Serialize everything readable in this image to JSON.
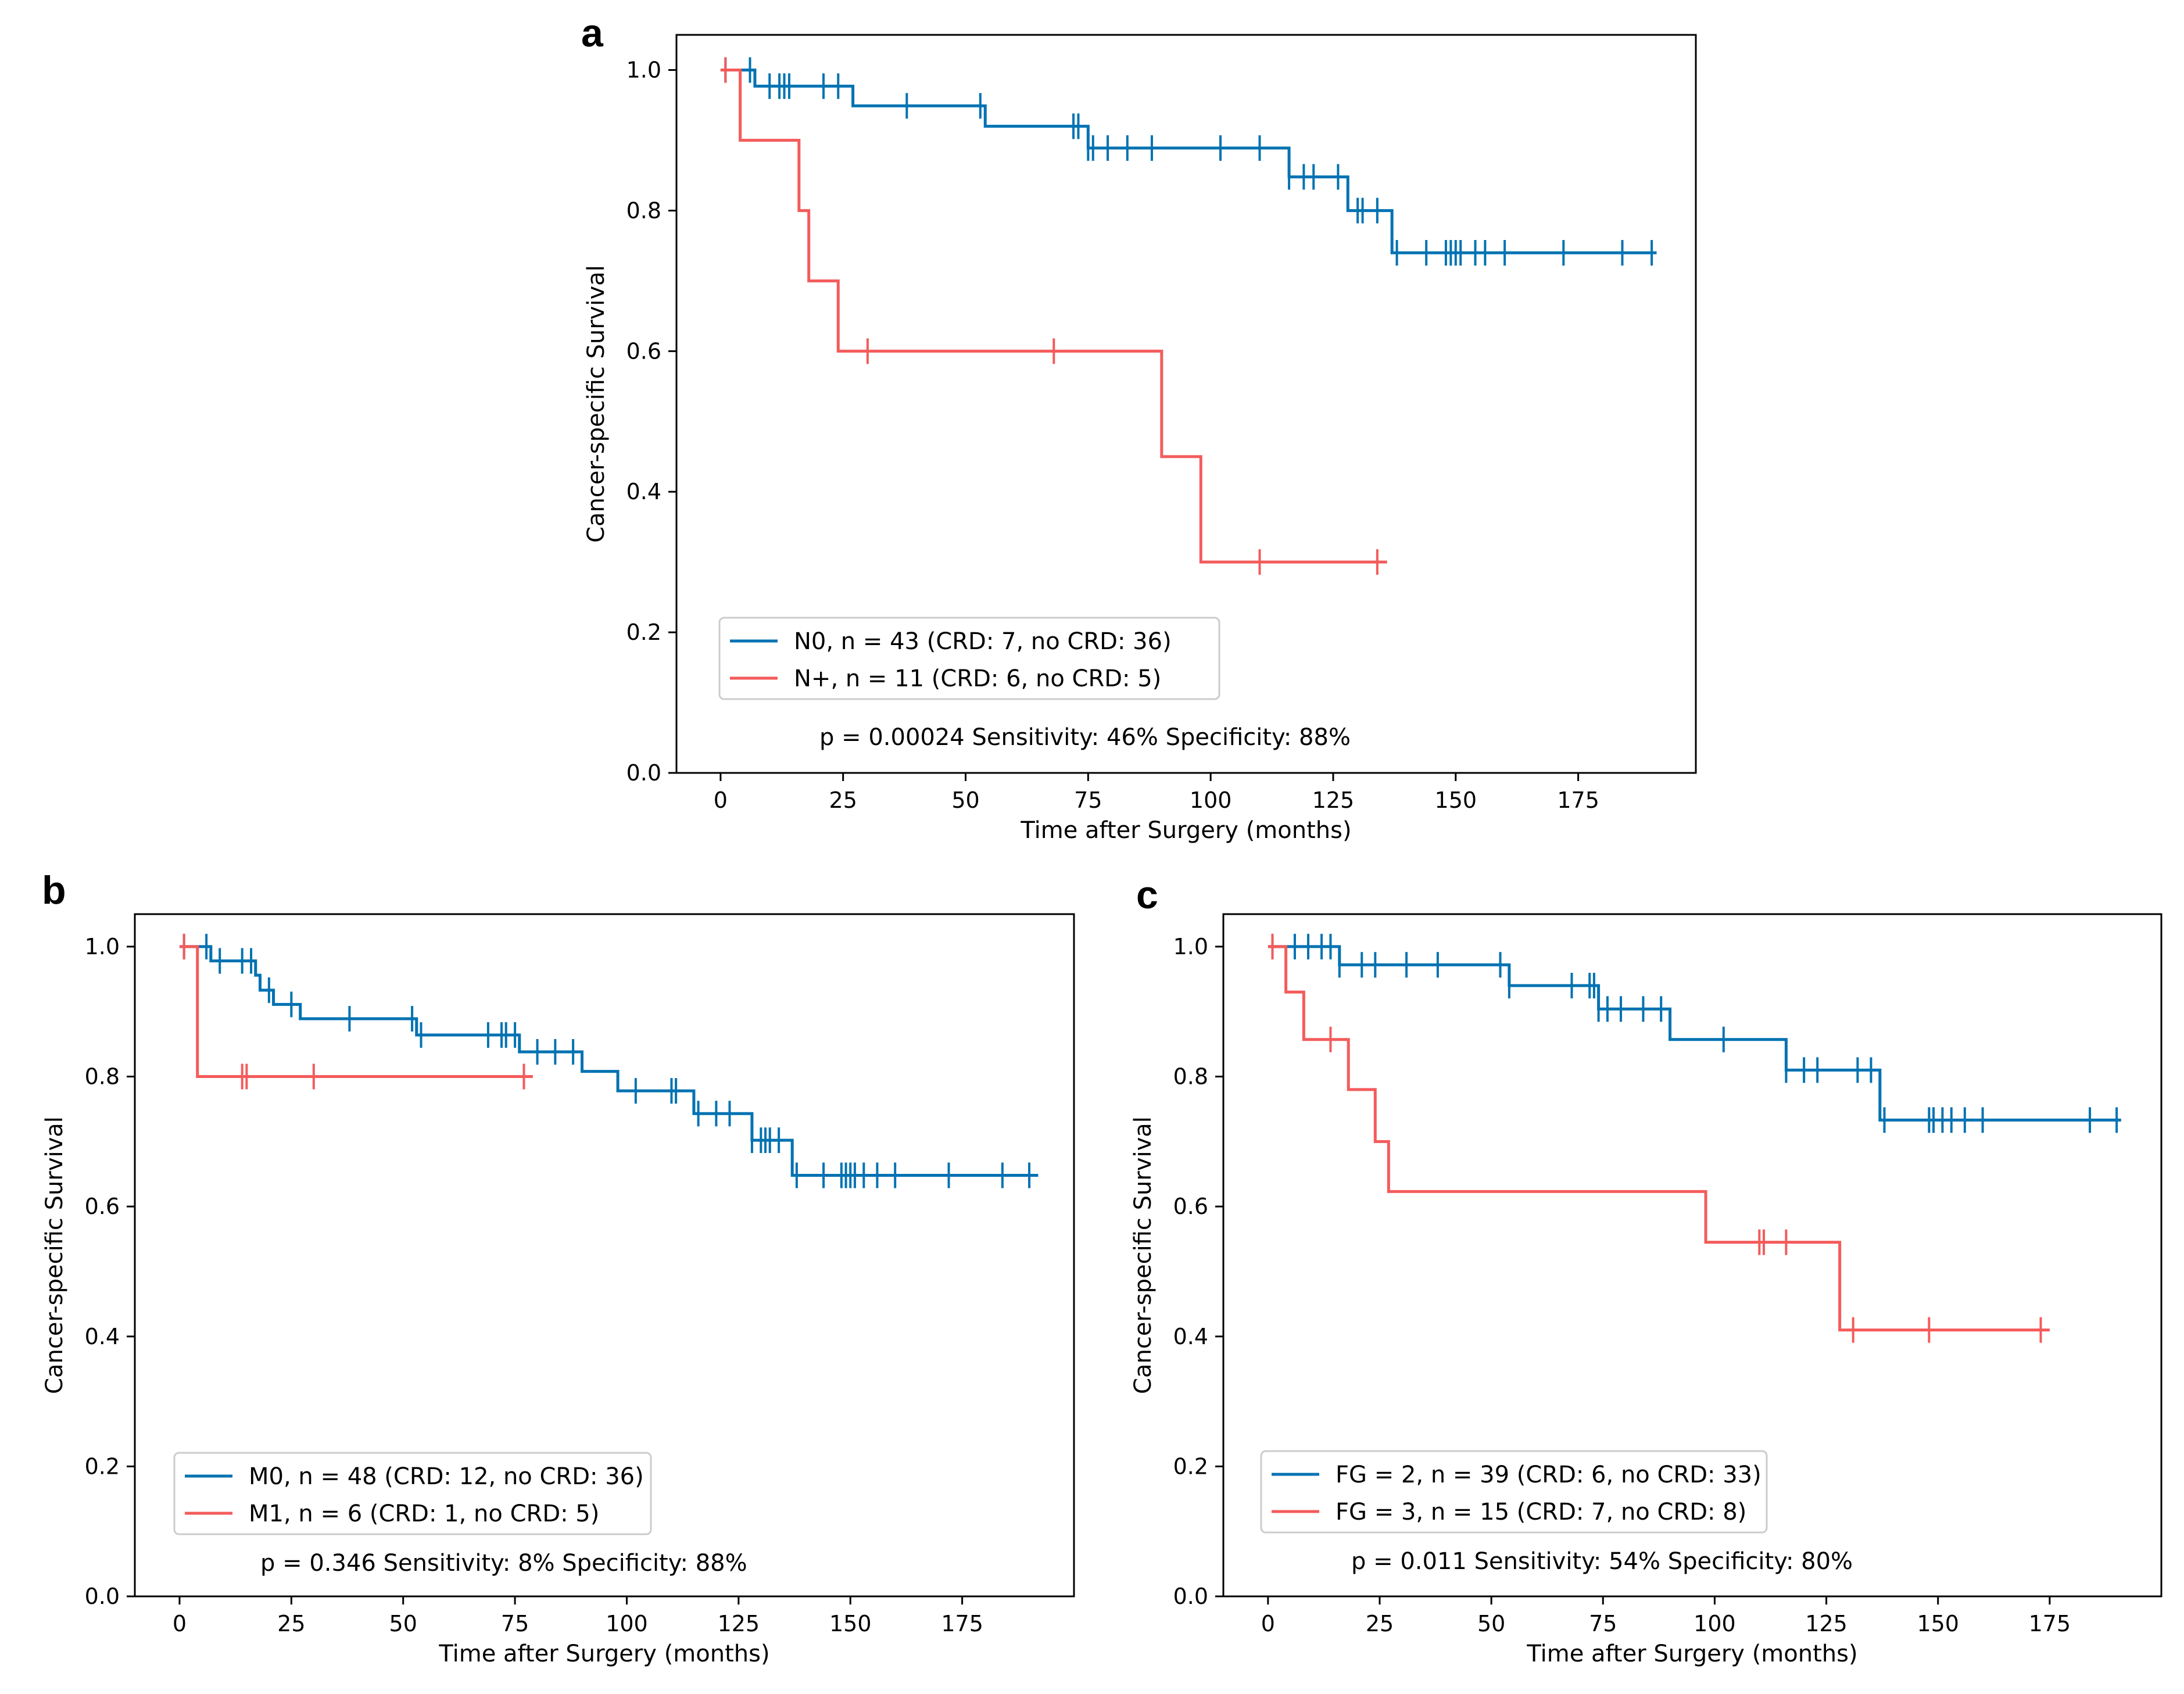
{
  "colors": {
    "n0": "#0072b2",
    "nplus": "#f45b5b"
  },
  "chart_data": [
    {
      "type": "line",
      "panel": "a",
      "xlabel": "Time after Surgery (months)",
      "ylabel": "Cancer-specific Survival",
      "xlim": [
        -9,
        199
      ],
      "ylim": [
        0,
        1.05
      ],
      "xticks": [
        0,
        25,
        50,
        75,
        100,
        125,
        150,
        175
      ],
      "xtick_labels": [
        "0",
        "25",
        "50",
        "75",
        "100",
        "125",
        "150",
        "175"
      ],
      "yticks": [
        0.0,
        0.2,
        0.4,
        0.6,
        0.8,
        1.0
      ],
      "ytick_labels": [
        "0.0",
        "0.2",
        "0.4",
        "0.6",
        "0.8",
        "1.0"
      ],
      "legend_position": "lower-left",
      "stats": "p = 0.00024   Sensitivity: 46%  Specificity: 88%",
      "series": [
        {
          "name": "N0, n = 43 (CRD: 7, no CRD: 36)",
          "color": "#0072b2",
          "steps": [
            [
              0,
              1.0
            ],
            [
              7,
              0.977
            ],
            [
              27,
              0.949
            ],
            [
              54,
              0.92
            ],
            [
              75,
              0.889
            ],
            [
              116,
              0.848
            ],
            [
              128,
              0.8
            ],
            [
              137,
              0.74
            ],
            [
              191,
              0.74
            ]
          ],
          "censored": [
            1,
            6,
            10,
            12,
            13,
            14,
            21,
            24,
            38,
            53,
            72,
            73,
            75,
            76,
            79,
            83,
            88,
            102,
            110,
            116,
            119,
            121,
            126,
            130,
            131,
            134,
            138,
            144,
            148,
            149,
            150,
            151,
            154,
            156,
            160,
            172,
            184,
            190
          ]
        },
        {
          "name": "N+, n = 11 (CRD: 6, no CRD: 5)",
          "color": "#f45b5b",
          "steps": [
            [
              0,
              1.0
            ],
            [
              4,
              0.9
            ],
            [
              16,
              0.8
            ],
            [
              18,
              0.7
            ],
            [
              24,
              0.6
            ],
            [
              90,
              0.45
            ],
            [
              98,
              0.3
            ],
            [
              136,
              0.3
            ]
          ],
          "censored": [
            1,
            30,
            68,
            110,
            134
          ]
        }
      ]
    },
    {
      "type": "line",
      "panel": "b",
      "xlabel": "Time after Surgery (months)",
      "ylabel": "Cancer-specific Survival",
      "xlim": [
        -10,
        200
      ],
      "ylim": [
        0,
        1.05
      ],
      "xticks": [
        0,
        25,
        50,
        75,
        100,
        125,
        150,
        175
      ],
      "xtick_labels": [
        "0",
        "25",
        "50",
        "75",
        "100",
        "125",
        "150",
        "175"
      ],
      "yticks": [
        0.0,
        0.2,
        0.4,
        0.6,
        0.8,
        1.0
      ],
      "ytick_labels": [
        "0.0",
        "0.2",
        "0.4",
        "0.6",
        "0.8",
        "1.0"
      ],
      "legend_position": "lower-left",
      "stats": "p = 0.346   Sensitivity: 8%  Specificity: 88%",
      "series": [
        {
          "name": "M0, n = 48 (CRD: 12, no CRD: 36)",
          "color": "#0072b2",
          "steps": [
            [
              0,
              1.0
            ],
            [
              7,
              0.978
            ],
            [
              17,
              0.956
            ],
            [
              18,
              0.933
            ],
            [
              21,
              0.911
            ],
            [
              27,
              0.889
            ],
            [
              53,
              0.864
            ],
            [
              76,
              0.838
            ],
            [
              90,
              0.808
            ],
            [
              98,
              0.778
            ],
            [
              115,
              0.743
            ],
            [
              128,
              0.702
            ],
            [
              137,
              0.648
            ],
            [
              192,
              0.648
            ]
          ],
          "censored": [
            1,
            6,
            9,
            14,
            16,
            20,
            25,
            38,
            52,
            54,
            69,
            72,
            73,
            75,
            80,
            84,
            88,
            102,
            110,
            111,
            116,
            120,
            123,
            128,
            130,
            131,
            132,
            134,
            138,
            144,
            148,
            149,
            150,
            151,
            153,
            156,
            160,
            172,
            184,
            190
          ]
        },
        {
          "name": "M1, n = 6 (CRD: 1, no CRD: 5)",
          "color": "#f45b5b",
          "steps": [
            [
              0,
              1.0
            ],
            [
              4,
              0.8
            ],
            [
              79,
              0.8
            ]
          ],
          "censored": [
            1,
            14,
            15,
            30,
            77
          ]
        }
      ]
    },
    {
      "type": "line",
      "panel": "c",
      "xlabel": "Time after Surgery (months)",
      "ylabel": "Cancer-specific Survival",
      "xlim": [
        -10,
        200
      ],
      "ylim": [
        0,
        1.05
      ],
      "xticks": [
        0,
        25,
        50,
        75,
        100,
        125,
        150,
        175
      ],
      "xtick_labels": [
        "0",
        "25",
        "50",
        "75",
        "100",
        "125",
        "150",
        "175"
      ],
      "yticks": [
        0.0,
        0.2,
        0.4,
        0.6,
        0.8,
        1.0
      ],
      "ytick_labels": [
        "0.0",
        "0.2",
        "0.4",
        "0.6",
        "0.8",
        "1.0"
      ],
      "legend_position": "lower-left",
      "stats": "p = 0.011   Sensitivity: 54%  Specificity: 80%",
      "series": [
        {
          "name": "FG = 2, n = 39 (CRD: 6, no CRD: 33)",
          "color": "#0072b2",
          "steps": [
            [
              0,
              1.0
            ],
            [
              16,
              0.972
            ],
            [
              54,
              0.94
            ],
            [
              74,
              0.904
            ],
            [
              90,
              0.857
            ],
            [
              116,
              0.81
            ],
            [
              137,
              0.733
            ],
            [
              191,
              0.733
            ]
          ],
          "censored": [
            1,
            6,
            9,
            12,
            14,
            16,
            21,
            24,
            31,
            38,
            52,
            54,
            68,
            72,
            73,
            74,
            76,
            79,
            84,
            88,
            102,
            116,
            120,
            123,
            132,
            135,
            138,
            148,
            149,
            151,
            153,
            156,
            160,
            184,
            190
          ]
        },
        {
          "name": "FG = 3, n = 15 (CRD: 7, no CRD: 8)",
          "color": "#f45b5b",
          "steps": [
            [
              0,
              1.0
            ],
            [
              4,
              0.93
            ],
            [
              8,
              0.857
            ],
            [
              18,
              0.78
            ],
            [
              24,
              0.7
            ],
            [
              27,
              0.623
            ],
            [
              98,
              0.545
            ],
            [
              128,
              0.41
            ],
            [
              175,
              0.41
            ]
          ],
          "censored": [
            1,
            14,
            110,
            111,
            116,
            131,
            148,
            173
          ]
        }
      ]
    }
  ]
}
